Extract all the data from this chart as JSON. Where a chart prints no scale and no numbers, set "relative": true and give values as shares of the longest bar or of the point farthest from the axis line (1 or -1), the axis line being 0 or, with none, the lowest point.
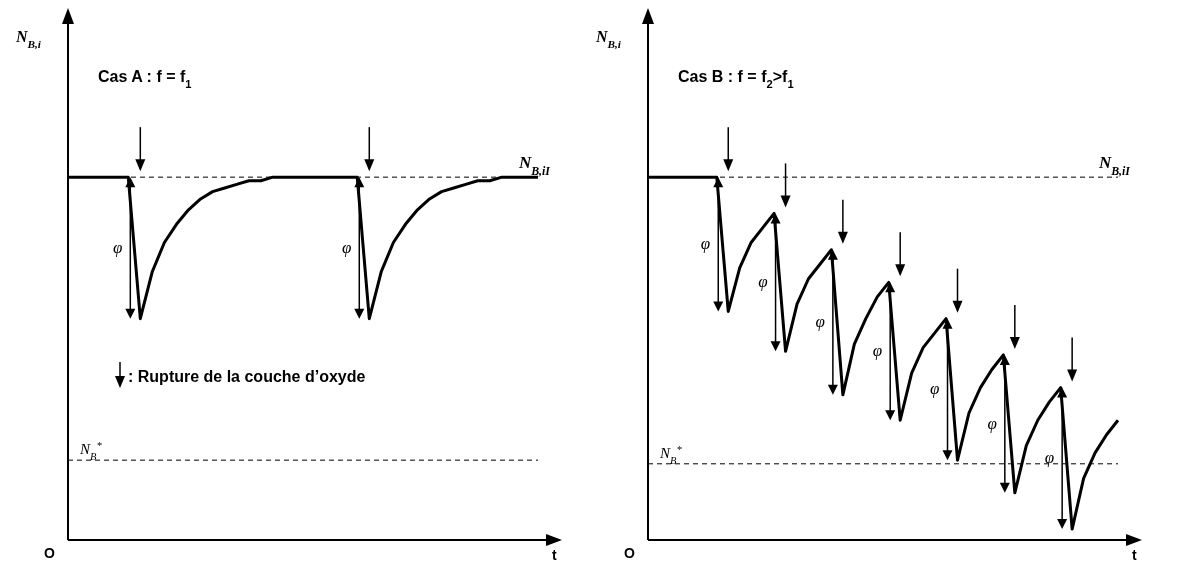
{
  "chart_data": [
    {
      "type": "line",
      "title": "Cas A : f = f$_{1}$",
      "ylabel": "N$_{B,i}$",
      "xlabel": "t",
      "relative": true,
      "color": "#000000",
      "marker": "none",
      "line_style": "solid",
      "legend": false,
      "grid": false,
      "categories": [
        null,
        null,
        null,
        null,
        null,
        null,
        null,
        null,
        null,
        null,
        null,
        null,
        null,
        null,
        null,
        null,
        null,
        null,
        null,
        null,
        null,
        null,
        null,
        null,
        null,
        null,
        null,
        null,
        null,
        null,
        null,
        null,
        null,
        null,
        null,
        null,
        null,
        null,
        null,
        null
      ],
      "values": [
        1,
        1,
        1,
        1,
        1,
        1,
        0.61,
        0.74,
        0.82,
        0.87,
        0.91,
        0.94,
        0.96,
        0.97,
        0.98,
        0.99,
        0.99,
        1,
        1,
        1,
        1,
        1,
        1,
        1,
        1,
        0.61,
        0.74,
        0.82,
        0.87,
        0.91,
        0.94,
        0.96,
        0.97,
        0.98,
        0.99,
        0.99,
        1,
        1,
        1,
        1
      ],
      "ref_lines": [
        {
          "axis": "y",
          "value": 1,
          "label": "N$_{B,iI}$",
          "line_style": "dashed"
        },
        {
          "axis": "y",
          "value": 0.22,
          "label": "N$_{B}$$^{*}$",
          "line_style": "dashed"
        }
      ],
      "annotations": [
        "O",
        ": Rupture de la couche d’oxyde",
        "φ",
        "φ"
      ]
    },
    {
      "type": "line",
      "title": "Cas B : f = f$_{2}$>f$_{1}$",
      "ylabel": "N$_{B,i}$",
      "xlabel": "t",
      "relative": true,
      "color": "#000000",
      "marker": "none",
      "line_style": "solid",
      "legend": false,
      "grid": false,
      "categories": [
        null,
        null,
        null,
        null,
        null,
        null,
        null,
        null,
        null,
        null,
        null,
        null,
        null,
        null,
        null,
        null,
        null,
        null,
        null,
        null,
        null,
        null,
        null,
        null,
        null,
        null,
        null,
        null,
        null,
        null,
        null,
        null,
        null,
        null,
        null,
        null,
        null,
        null,
        null,
        null,
        null,
        null
      ],
      "values": [
        1,
        1,
        1,
        1,
        1,
        1,
        1,
        0.63,
        0.75,
        0.82,
        0.86,
        0.9,
        0.52,
        0.65,
        0.72,
        0.76,
        0.8,
        0.4,
        0.54,
        0.61,
        0.67,
        0.71,
        0.33,
        0.46,
        0.53,
        0.57,
        0.61,
        0.22,
        0.35,
        0.42,
        0.47,
        0.51,
        0.13,
        0.26,
        0.33,
        0.38,
        0.42,
        0.03,
        0.17,
        0.24,
        0.29,
        0.33
      ],
      "ref_lines": [
        {
          "axis": "y",
          "value": 1,
          "label": "N$_{B,iI}$",
          "line_style": "dashed"
        },
        {
          "axis": "y",
          "value": 0.21,
          "label": "N$_{B}$$^{*}$",
          "line_style": "dashed"
        }
      ],
      "annotations": [
        "O",
        "φ",
        "φ",
        "φ",
        "φ",
        "φ",
        "φ",
        "φ"
      ]
    }
  ]
}
